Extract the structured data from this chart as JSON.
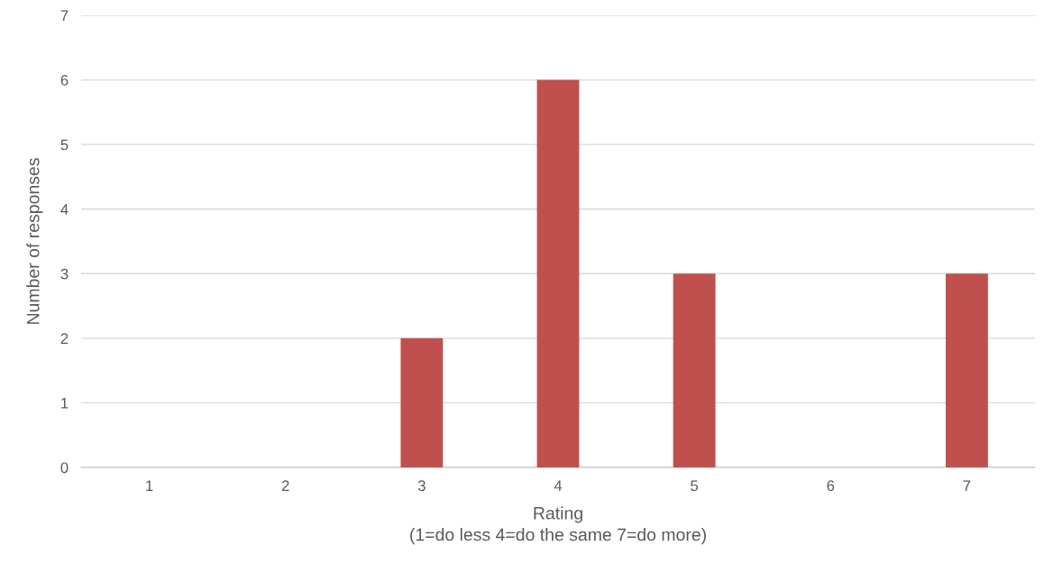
{
  "chart_data": {
    "type": "bar",
    "xlabel": "Rating\n(1=do less 4=do the same 7=do more)",
    "ylabel": "Number of responses",
    "categories": [
      "1",
      "2",
      "3",
      "4",
      "5",
      "6",
      "7"
    ],
    "values": [
      0,
      0,
      2,
      6,
      3,
      0,
      3
    ],
    "color": "#c0504d",
    "ylim": [
      0,
      7
    ],
    "yticks": [
      0,
      1,
      2,
      3,
      4,
      5,
      6,
      7
    ],
    "grid": "y"
  }
}
